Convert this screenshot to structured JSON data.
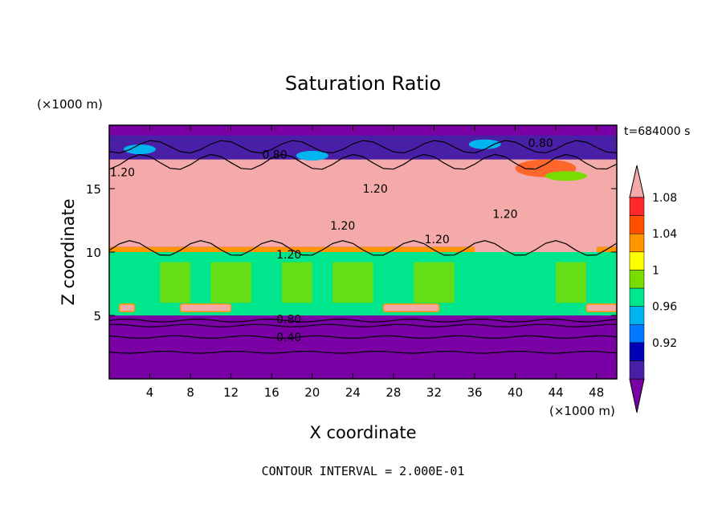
{
  "chart_data": {
    "type": "heatmap",
    "title": "Saturation Ratio",
    "xlabel": "X coordinate",
    "ylabel": "Z coordinate",
    "x_unit": "(×1000 m)",
    "y_unit": "(×1000 m)",
    "time_label": "t=684000 s",
    "footer": "CONTOUR INTERVAL = 2.000E-01",
    "xlim": [
      0,
      50
    ],
    "ylim": [
      0,
      20
    ],
    "xticks": [
      4,
      8,
      12,
      16,
      20,
      24,
      28,
      32,
      36,
      40,
      44,
      48
    ],
    "yticks": [
      5,
      10,
      15
    ],
    "colorbar": {
      "levels": [
        0.92,
        0.96,
        1,
        1.04,
        1.08
      ],
      "level_labels": [
        "0.92",
        "0.96",
        "1",
        "1.04",
        "1.08"
      ],
      "colors": [
        "#7a00a6",
        "#4a1fa8",
        "#0000b4",
        "#0078ff",
        "#00b4f0",
        "#00e68c",
        "#78dc00",
        "#ffff00",
        "#ff9600",
        "#ff5000",
        "#ff2828",
        "#f5aaaa"
      ],
      "extend": "both"
    },
    "contour_labels": [
      {
        "text": "0.80",
        "x": 42.5,
        "y": 18.6
      },
      {
        "text": "0.80",
        "x": 16.3,
        "y": 17.7
      },
      {
        "text": "1.20",
        "x": 1.3,
        "y": 16.3
      },
      {
        "text": "1.20",
        "x": 26.2,
        "y": 15.0
      },
      {
        "text": "1.20",
        "x": 39.0,
        "y": 13.0
      },
      {
        "text": "1.20",
        "x": 23.0,
        "y": 12.1
      },
      {
        "text": "1.20",
        "x": 32.3,
        "y": 11.0
      },
      {
        "text": "1.20",
        "x": 17.7,
        "y": 9.8
      },
      {
        "text": "0.80",
        "x": 17.7,
        "y": 4.7
      },
      {
        "text": "0.40",
        "x": 17.7,
        "y": 3.3
      }
    ]
  }
}
